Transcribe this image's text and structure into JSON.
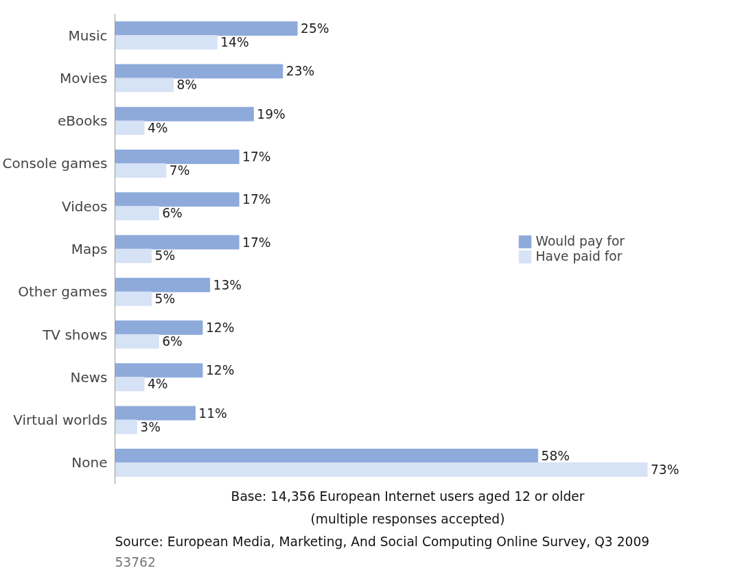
{
  "chart_data": {
    "type": "bar",
    "orientation": "horizontal",
    "categories": [
      "Music",
      "Movies",
      "eBooks",
      "Console games",
      "Videos",
      "Maps",
      "Other games",
      "TV shows",
      "News",
      "Virtual worlds",
      "None"
    ],
    "series": [
      {
        "name": "Would pay for",
        "color": "#8eaadb",
        "values": [
          25,
          23,
          19,
          17,
          17,
          17,
          13,
          12,
          12,
          11,
          58
        ],
        "value_labels": [
          "25%",
          "23%",
          "19%",
          "17%",
          "17%",
          "17%",
          "13%",
          "12%",
          "12%",
          "11%",
          "58%"
        ]
      },
      {
        "name": "Have paid for",
        "color": "#d6e2f5",
        "values": [
          14,
          8,
          4,
          7,
          6,
          5,
          5,
          6,
          4,
          3,
          73
        ],
        "value_labels": [
          "14%",
          "8%",
          "4%",
          "7%",
          "6%",
          "5%",
          "5%",
          "6%",
          "4%",
          "3%",
          "73%"
        ]
      }
    ],
    "legend": "right",
    "grid": false,
    "annotations": [
      "Base: 14,356 European Internet users aged 12 or older",
      "(multiple responses accepted)",
      "Source: European Media, Marketing, And Social Computing Online Survey, Q3 2009",
      "53762"
    ]
  }
}
